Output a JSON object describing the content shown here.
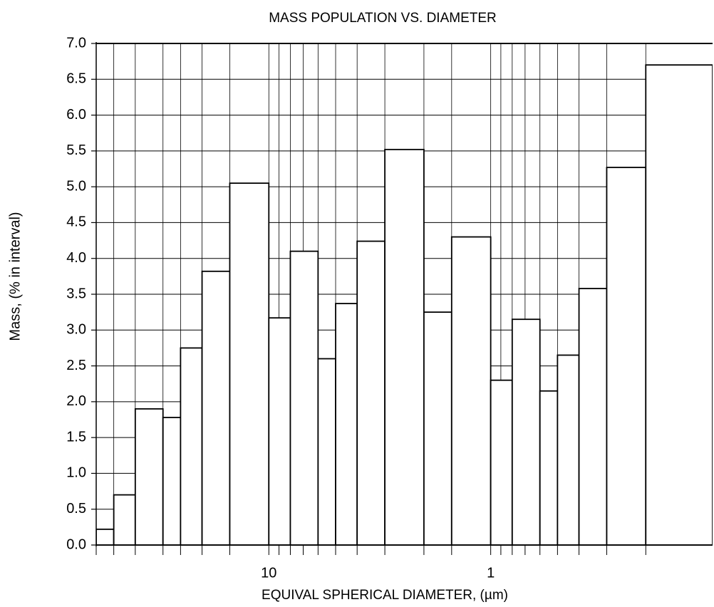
{
  "chart_data": {
    "type": "histogram",
    "title": "MASS POPULATION VS. DIAMETER",
    "xlabel": "EQUIVAL SPHERICAL DIAMETER, (µm)",
    "ylabel": "Mass, (% in interval)",
    "bins": [
      60,
      50,
      40,
      30,
      25,
      20,
      15,
      10,
      8,
      6,
      5,
      4,
      3,
      2,
      1.5,
      1,
      0.8,
      0.6,
      0.5,
      0.4,
      0.3,
      0.2,
      0.1
    ],
    "values": [
      0.22,
      0.7,
      1.9,
      1.78,
      2.75,
      3.82,
      5.05,
      3.17,
      4.1,
      2.6,
      3.37,
      4.24,
      5.52,
      3.25,
      4.3,
      2.3,
      3.15,
      2.15,
      2.65,
      3.58,
      5.27,
      6.7
    ],
    "color": "#ffffff",
    "xscale": "log",
    "xlim": [
      60,
      0.1
    ],
    "xticks": [
      10,
      1
    ],
    "xgrid": [
      60,
      50,
      40,
      30,
      25,
      20,
      15,
      10,
      9,
      8,
      7,
      6,
      5,
      4,
      3,
      2,
      1.5,
      1,
      0.9,
      0.8,
      0.7,
      0.6,
      0.5,
      0.4,
      0.3,
      0.2
    ],
    "ylim": [
      0,
      7
    ],
    "yticks": [
      {
        "value": 0,
        "label": "0.0"
      },
      {
        "value": 0.5,
        "label": "0.5"
      },
      {
        "value": 1,
        "label": "1.0"
      },
      {
        "value": 1.5,
        "label": "1.5"
      },
      {
        "value": 2,
        "label": "2.0"
      },
      {
        "value": 2.5,
        "label": "2.5"
      },
      {
        "value": 3,
        "label": "3.0"
      },
      {
        "value": 3.5,
        "label": "3.5"
      },
      {
        "value": 4,
        "label": "4.0"
      },
      {
        "value": 4.5,
        "label": "4.5"
      },
      {
        "value": 5,
        "label": "5.0"
      },
      {
        "value": 5.5,
        "label": "5.5"
      },
      {
        "value": 6,
        "label": "6.0"
      },
      {
        "value": 6.5,
        "label": "6.5"
      },
      {
        "value": 7,
        "label": "7.0"
      }
    ],
    "grid": true
  }
}
